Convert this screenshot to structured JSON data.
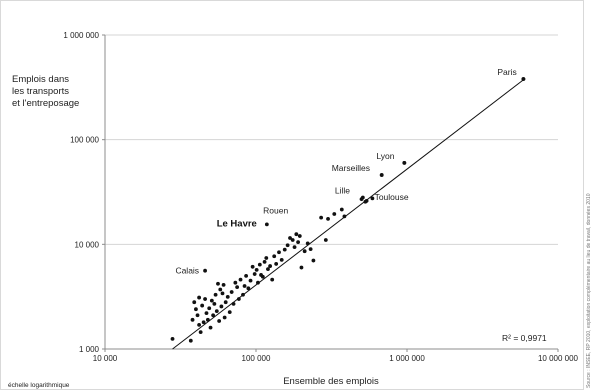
{
  "chart_data": {
    "type": "scatter",
    "ylabel_lines": [
      "Emplois dans",
      "les transports",
      "et l'entreposage"
    ],
    "xlabel": "Ensemble des emplois",
    "scale": "log",
    "note": "échelle logarithmique",
    "r_squared": "R² = 0,9971",
    "source": "Source : INSEE, RP 2010, exploitation complémentaire au lieu de travail, données 2010",
    "xlim": [
      10000,
      10000000
    ],
    "ylim": [
      1000,
      1000000
    ],
    "x_ticks": [
      {
        "value": 10000,
        "label": "10 000"
      },
      {
        "value": 100000,
        "label": "100 000"
      },
      {
        "value": 1000000,
        "label": "1 000 000"
      },
      {
        "value": 10000000,
        "label": "10 000 000"
      }
    ],
    "y_ticks": [
      {
        "value": 1000,
        "label": "1 000"
      },
      {
        "value": 10000,
        "label": "10 000"
      },
      {
        "value": 100000,
        "label": "100 000"
      },
      {
        "value": 1000000,
        "label": "1 000 000"
      }
    ],
    "trendline": [
      [
        28000,
        1000
      ],
      [
        6000000,
        380000
      ]
    ],
    "labeled_points": [
      {
        "name": "Paris",
        "x": 5900000,
        "y": 380000,
        "emphasis": false
      },
      {
        "name": "Lyon",
        "x": 960000,
        "y": 60000,
        "emphasis": false
      },
      {
        "name": "Marseilles",
        "x": 680000,
        "y": 46000,
        "emphasis": false
      },
      {
        "name": "Lille",
        "x": 510000,
        "y": 28000,
        "emphasis": false
      },
      {
        "name": "Toulouse",
        "x": 540000,
        "y": 26000,
        "emphasis": false
      },
      {
        "name": "Rouen",
        "x": 270000,
        "y": 18000,
        "emphasis": false
      },
      {
        "name": "Le Havre",
        "x": 118000,
        "y": 15500,
        "emphasis": true
      },
      {
        "name": "Calais",
        "x": 46000,
        "y": 5600,
        "emphasis": false
      }
    ],
    "points": [
      [
        28000,
        1250
      ],
      [
        37000,
        1200
      ],
      [
        38000,
        1900
      ],
      [
        39000,
        2800
      ],
      [
        40000,
        2400
      ],
      [
        41000,
        2100
      ],
      [
        42000,
        3100
      ],
      [
        42000,
        1700
      ],
      [
        43000,
        1450
      ],
      [
        44000,
        2600
      ],
      [
        45000,
        1800
      ],
      [
        46000,
        3000
      ],
      [
        47000,
        2200
      ],
      [
        48000,
        1900
      ],
      [
        49000,
        2450
      ],
      [
        50000,
        1600
      ],
      [
        51000,
        2900
      ],
      [
        52000,
        2100
      ],
      [
        53000,
        2700
      ],
      [
        54000,
        3300
      ],
      [
        55000,
        2300
      ],
      [
        56000,
        4200
      ],
      [
        57000,
        1850
      ],
      [
        58000,
        3700
      ],
      [
        59000,
        2550
      ],
      [
        60000,
        3400
      ],
      [
        61000,
        4100
      ],
      [
        62000,
        2000
      ],
      [
        63000,
        2800
      ],
      [
        65000,
        3150
      ],
      [
        67000,
        2250
      ],
      [
        69000,
        3500
      ],
      [
        71000,
        2700
      ],
      [
        73000,
        4300
      ],
      [
        75000,
        3900
      ],
      [
        77000,
        3000
      ],
      [
        79000,
        4600
      ],
      [
        82000,
        3300
      ],
      [
        84000,
        4000
      ],
      [
        86000,
        5000
      ],
      [
        89000,
        3800
      ],
      [
        92000,
        4500
      ],
      [
        95000,
        6100
      ],
      [
        98000,
        5200
      ],
      [
        101000,
        5700
      ],
      [
        103000,
        4300
      ],
      [
        106000,
        6400
      ],
      [
        108000,
        5100
      ],
      [
        111000,
        4900
      ],
      [
        114000,
        6800
      ],
      [
        117000,
        7400
      ],
      [
        120000,
        5800
      ],
      [
        124000,
        6200
      ],
      [
        128000,
        4600
      ],
      [
        132000,
        7700
      ],
      [
        136000,
        6500
      ],
      [
        142000,
        8400
      ],
      [
        148000,
        7100
      ],
      [
        155000,
        8900
      ],
      [
        162000,
        9800
      ],
      [
        168000,
        11500
      ],
      [
        175000,
        11000
      ],
      [
        180000,
        9400
      ],
      [
        185000,
        12500
      ],
      [
        190000,
        10500
      ],
      [
        195000,
        12000
      ],
      [
        200000,
        6000
      ],
      [
        210000,
        8600
      ],
      [
        220000,
        10200
      ],
      [
        230000,
        9000
      ],
      [
        240000,
        7000
      ],
      [
        290000,
        11000
      ],
      [
        300000,
        17500
      ],
      [
        330000,
        19500
      ],
      [
        370000,
        21500
      ],
      [
        385000,
        18500
      ],
      [
        500000,
        27000
      ],
      [
        530000,
        25500
      ],
      [
        590000,
        27500
      ],
      [
        680000,
        46000
      ],
      [
        960000,
        60000
      ],
      [
        5900000,
        380000
      ]
    ]
  }
}
